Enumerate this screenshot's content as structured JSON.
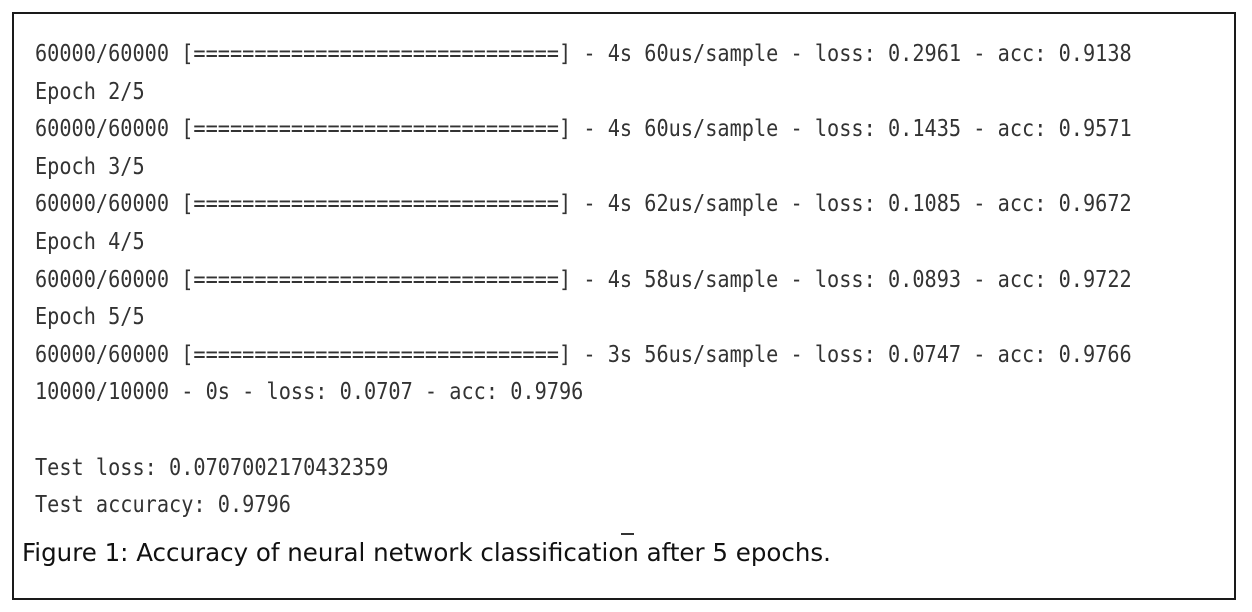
{
  "console": {
    "lines": [
      "60000/60000 [==============================] - 4s 60us/sample - loss: 0.2961 - acc: 0.9138",
      "Epoch 2/5",
      "60000/60000 [==============================] - 4s 60us/sample - loss: 0.1435 - acc: 0.9571",
      "Epoch 3/5",
      "60000/60000 [==============================] - 4s 62us/sample - loss: 0.1085 - acc: 0.9672",
      "Epoch 4/5",
      "60000/60000 [==============================] - 4s 58us/sample - loss: 0.0893 - acc: 0.9722",
      "Epoch 5/5",
      "60000/60000 [==============================] - 3s 56us/sample - loss: 0.0747 - acc: 0.9766",
      "10000/10000 - 0s - loss: 0.0707 - acc: 0.9796",
      "",
      "Test loss: 0.0707002170432359",
      "Test accuracy: 0.9796"
    ]
  },
  "caption": "Figure 1: Accuracy of neural network classification after 5 epochs."
}
